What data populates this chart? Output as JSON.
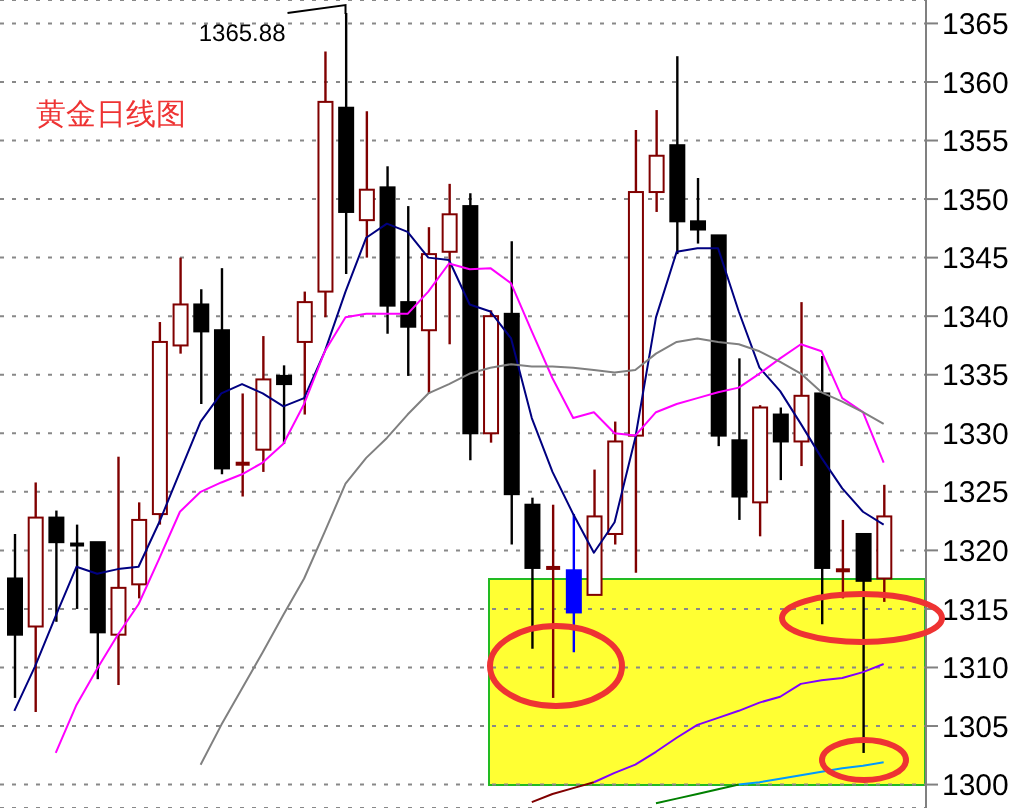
{
  "chart_data": {
    "type": "candlestick",
    "title": "黄金日线图",
    "categories": [
      null,
      null,
      null,
      null,
      null,
      null,
      null,
      null,
      null,
      null,
      null,
      null,
      null,
      null,
      null,
      null,
      null,
      null,
      null,
      null,
      null,
      null,
      null,
      null,
      null,
      null,
      null,
      null,
      null,
      null,
      null,
      null,
      null,
      null,
      null,
      null,
      null,
      null,
      null,
      null,
      null,
      null,
      null
    ],
    "ohlc": [
      [
        1317.6,
        1321.4,
        1307.4,
        1312.8
      ],
      [
        1313.5,
        1325.8,
        1306.2,
        1322.8
      ],
      [
        1322.8,
        1323.4,
        1313.9,
        1320.7
      ],
      [
        1320.5,
        1322.2,
        1315,
        1320.5
      ],
      [
        1320.7,
        1320.7,
        1309,
        1313
      ],
      [
        1312.8,
        1328,
        1308.5,
        1316.8
      ],
      [
        1317.1,
        1324.1,
        1315.9,
        1322.6
      ],
      [
        1323.1,
        1339.5,
        1322.2,
        1337.8
      ],
      [
        1337.5,
        1345,
        1336.8,
        1341
      ],
      [
        1341,
        1342.3,
        1332.5,
        1338.7
      ],
      [
        1338.8,
        1344.1,
        1326.5,
        1327
      ],
      [
        1327.4,
        1333.4,
        1324.6,
        1327.4
      ],
      [
        1328.6,
        1338.3,
        1326.7,
        1334.6
      ],
      [
        1334.9,
        1335.8,
        1329.1,
        1334.2
      ],
      [
        1337.8,
        1342.1,
        1331.6,
        1341.2
      ],
      [
        1342.1,
        1362.6,
        1339.9,
        1358.3
      ],
      [
        1357.8,
        1365.88,
        1343.6,
        1348.9
      ],
      [
        1348.2,
        1357.5,
        1345,
        1350.8
      ],
      [
        1351,
        1352.8,
        1338.5,
        1340.9
      ],
      [
        1341.2,
        1349.4,
        1334.9,
        1339.1
      ],
      [
        1338.8,
        1347.6,
        1333.4,
        1345.3
      ],
      [
        1345.5,
        1351.3,
        1337.6,
        1348.7
      ],
      [
        1349.4,
        1350.5,
        1327.7,
        1330
      ],
      [
        1330,
        1340.5,
        1329.2,
        1340
      ],
      [
        1340.2,
        1346.4,
        1320.5,
        1324.8
      ],
      [
        1323.9,
        1324.5,
        1311.6,
        1318.5
      ],
      [
        1318.5,
        1323.9,
        1307.4,
        1318.5
      ],
      [
        1318.3,
        1323.1,
        1311.3,
        1314.7
      ],
      [
        1316.2,
        1326.9,
        1316.2,
        1322.9
      ],
      [
        1321.4,
        1331,
        1320.5,
        1329.3
      ],
      [
        1329.8,
        1355.9,
        1318.1,
        1350.6
      ],
      [
        1350.6,
        1357.6,
        1348.9,
        1353.7
      ],
      [
        1354.6,
        1362.2,
        1345.3,
        1348.1
      ],
      [
        1348.1,
        1351.8,
        1346.2,
        1347.4
      ],
      [
        1346.9,
        1346.9,
        1328.9,
        1329.8
      ],
      [
        1329.4,
        1336.4,
        1322.6,
        1324.6
      ],
      [
        1324.1,
        1332.4,
        1321.2,
        1332.2
      ],
      [
        1331.6,
        1332.2,
        1326,
        1329.3
      ],
      [
        1329.3,
        1341.2,
        1327.2,
        1333.2
      ],
      [
        1333.4,
        1336.6,
        1313.7,
        1318.5
      ],
      [
        1318.3,
        1322.6,
        1315.9,
        1318.3
      ],
      [
        1321.4,
        1321.4,
        1302.7,
        1317.4
      ],
      [
        1317.6,
        1325.6,
        1315.6,
        1322.9
      ]
    ],
    "colors": [
      "#000000",
      "#800000",
      "#000000",
      "#000000",
      "#000000",
      "#800000",
      "#800000",
      "#800000",
      "#800000",
      "#000000",
      "#000000",
      "#800000",
      "#800000",
      "#000000",
      "#800000",
      "#800000",
      "#000000",
      "#800000",
      "#000000",
      "#000000",
      "#800000",
      "#800000",
      "#000000",
      "#800000",
      "#000000",
      "#000000",
      "#800000",
      "#0000ff",
      "#800000",
      "#800000",
      "#800000",
      "#800000",
      "#000000",
      "#000000",
      "#000000",
      "#000000",
      "#800000",
      "#000000",
      "#800000",
      "#000000",
      "#800000",
      "#000000",
      "#800000"
    ],
    "series": [
      {
        "type": "line",
        "color": "#000080",
        "values": [
          1306.3,
          1310.1,
          1314.4,
          1318.6,
          1318,
          1318.4,
          1318.6,
          1322.4,
          1326.7,
          1331,
          1333.4,
          1334.2,
          1333.4,
          1332.3,
          1333,
          1337,
          1342.1,
          1346.7,
          1347.9,
          1347.2,
          1345,
          1344.8,
          1341,
          1340.4,
          1338.1,
          1331.3,
          1326.7,
          1323.1,
          1319.8,
          1322.4,
          1329.6,
          1339.9,
          1345.5,
          1345.8,
          1345.8,
          1340.4,
          1335.6,
          1333.6,
          1330.8,
          1327.9,
          1325.3,
          1323.3,
          1322.2
        ]
      },
      {
        "type": "line",
        "color": "#ff00ff",
        "values": [
          null,
          null,
          1302.7,
          1306.8,
          1309.9,
          1312.8,
          1315.4,
          1319.3,
          1323.3,
          1325,
          1325.8,
          1326.5,
          1327.5,
          1329.1,
          1332.5,
          1337,
          1339.9,
          1340.2,
          1340.2,
          1340.2,
          1342.1,
          1344.5,
          1344,
          1344.1,
          1342.8,
          1338.7,
          1334.7,
          1331.3,
          1331.8,
          1330,
          1329.8,
          1331.8,
          1332.5,
          1333,
          1333.5,
          1333.9,
          1335.1,
          1336.4,
          1337.6,
          1337,
          1333,
          1331.8,
          1327.5
        ]
      },
      {
        "type": "line",
        "color": "#808080",
        "values": [
          null,
          null,
          null,
          null,
          null,
          null,
          null,
          null,
          null,
          1301.7,
          1305.1,
          1308.2,
          1311.3,
          1314.5,
          1317.6,
          1321.6,
          1325.7,
          1327.9,
          1329.6,
          1331.6,
          1333.4,
          1334.2,
          1335.1,
          1335.6,
          1335.9,
          1335.7,
          1335.7,
          1335.6,
          1335.4,
          1335.2,
          1335.4,
          1336.8,
          1337.8,
          1338.1,
          1337.8,
          1337.6,
          1337,
          1336.1,
          1335.1,
          1333.5,
          1332.7,
          1331.8,
          1330.8
        ]
      },
      {
        "type": "line",
        "color": "#800000",
        "values": [
          null,
          null,
          null,
          null,
          null,
          null,
          null,
          null,
          null,
          null,
          null,
          null,
          null,
          null,
          null,
          null,
          null,
          null,
          null,
          null,
          null,
          null,
          null,
          null,
          null,
          1298.5,
          1299.2,
          1299.7,
          1300.2,
          null,
          null,
          null,
          null,
          null,
          null,
          null,
          null,
          null,
          null,
          null,
          null,
          null,
          null
        ]
      },
      {
        "type": "line",
        "color": "#8000ff",
        "values": [
          null,
          null,
          null,
          null,
          null,
          null,
          null,
          null,
          null,
          null,
          null,
          null,
          null,
          null,
          null,
          null,
          null,
          null,
          null,
          null,
          null,
          null,
          null,
          null,
          null,
          null,
          null,
          null,
          1300.2,
          1301,
          1301.7,
          1302.8,
          1304,
          1305.1,
          1305.7,
          1306.3,
          1307,
          1307.5,
          1308.6,
          1308.9,
          1309.1,
          1309.6,
          1310.3
        ]
      },
      {
        "type": "line",
        "color": "#008000",
        "values": [
          null,
          null,
          null,
          null,
          null,
          null,
          null,
          null,
          null,
          null,
          null,
          null,
          null,
          null,
          null,
          null,
          null,
          null,
          null,
          null,
          null,
          null,
          null,
          null,
          null,
          null,
          null,
          null,
          null,
          null,
          null,
          1298.4,
          1298.8,
          1299.2,
          1299.6,
          1300,
          null,
          null,
          null,
          null,
          null,
          null,
          null
        ]
      },
      {
        "type": "line",
        "color": "#0099ff",
        "values": [
          null,
          null,
          null,
          null,
          null,
          null,
          null,
          null,
          null,
          null,
          null,
          null,
          null,
          null,
          null,
          null,
          null,
          null,
          null,
          null,
          null,
          null,
          null,
          null,
          null,
          null,
          null,
          null,
          null,
          null,
          null,
          null,
          null,
          null,
          null,
          1300,
          1300.2,
          1300.5,
          1300.8,
          1301.1,
          1301.4,
          1301.6,
          1301.9
        ]
      }
    ],
    "ylim": [
      1298,
      1367
    ],
    "yticks": [
      1300,
      1305,
      1310,
      1315,
      1320,
      1325,
      1330,
      1335,
      1340,
      1345,
      1350,
      1355,
      1360,
      1365
    ],
    "grid": "y",
    "tick_labels": "y",
    "marker": "none",
    "line_style": "solid",
    "annotations": [
      "1365.88"
    ]
  }
}
